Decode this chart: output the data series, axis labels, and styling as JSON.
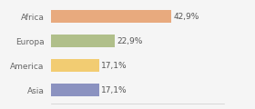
{
  "categories": [
    "Asia",
    "America",
    "Europa",
    "Africa"
  ],
  "values": [
    17.1,
    17.1,
    22.9,
    42.9
  ],
  "labels": [
    "17,1%",
    "17,1%",
    "22,9%",
    "42,9%"
  ],
  "bar_colors": [
    "#8b92c0",
    "#f2cc72",
    "#b0bf8a",
    "#e8aa7e"
  ],
  "background_color": "#f5f5f5",
  "xlim": [
    0,
    62
  ],
  "label_fontsize": 6.5,
  "tick_fontsize": 6.5
}
